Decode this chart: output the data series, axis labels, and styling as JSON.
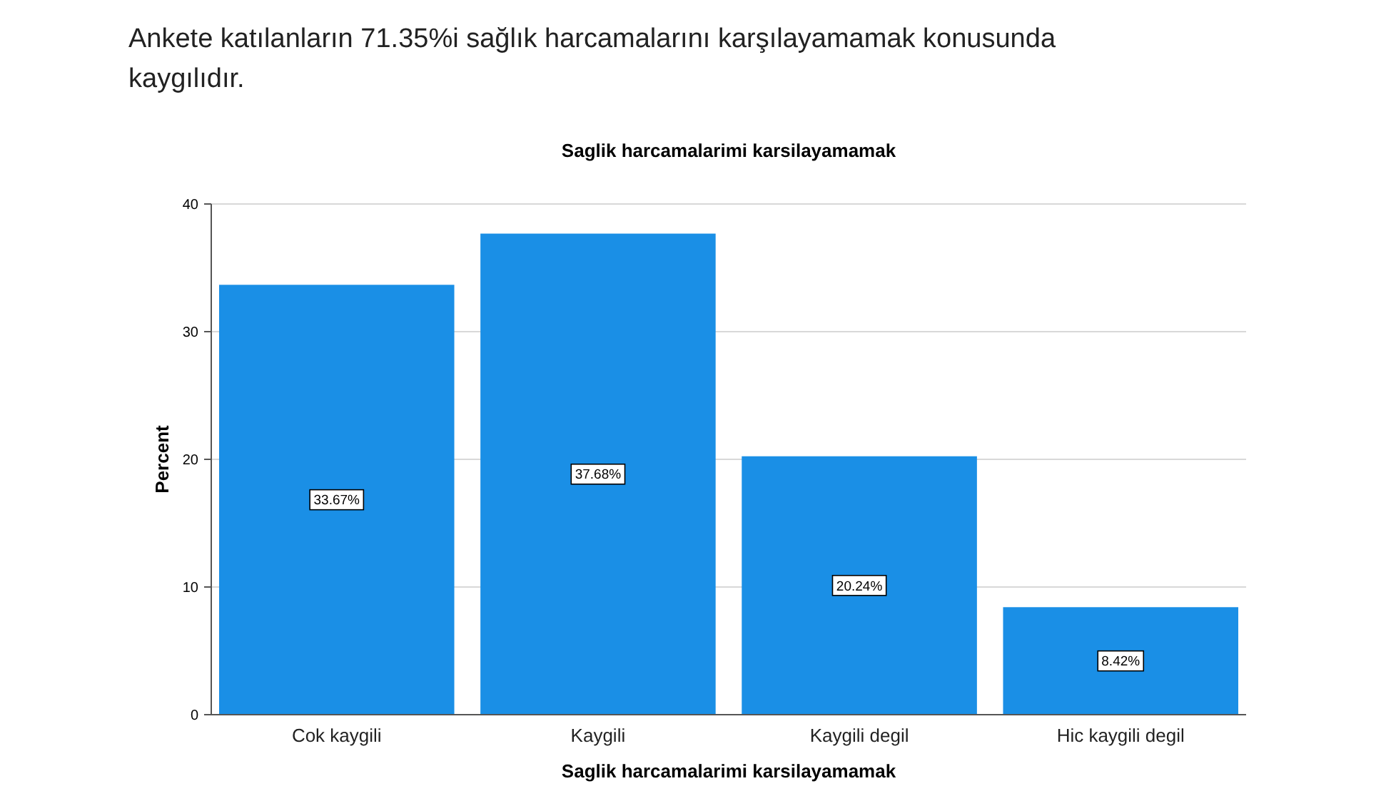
{
  "chart_data": {
    "type": "bar",
    "title": "Ankete katılanların 71.35%i sağlık harcamalarını karşılayamamak konusunda kaygılıdır.",
    "subtitle": "Saglik harcamalarimi karsilayamamak",
    "xlabel": "Saglik harcamalarimi karsilayamamak",
    "ylabel": "Percent",
    "categories": [
      "Cok kaygili",
      "Kaygili",
      "Kaygili degil",
      "Hic kaygili degil"
    ],
    "values": [
      33.67,
      37.68,
      20.24,
      8.42
    ],
    "color": "#1a8fe6",
    "value_labels": [
      "33.67%",
      "37.68%",
      "20.24%",
      "8.42%"
    ],
    "ylim": [
      0,
      40
    ],
    "yticks": [
      0,
      10,
      20,
      30,
      40
    ],
    "grid": "y"
  }
}
